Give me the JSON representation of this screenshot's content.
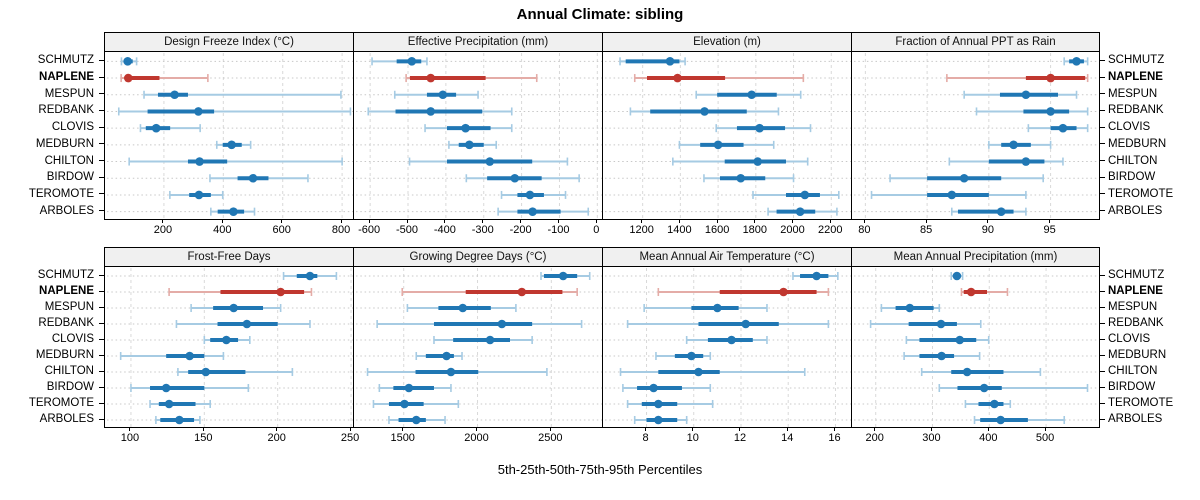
{
  "title": "Annual Climate: sibling",
  "caption": "5th-25th-50th-75th-95th Percentiles",
  "percentile_labels": [
    "5th",
    "25th",
    "50th",
    "75th",
    "95th"
  ],
  "sites": [
    "SCHMUTZ",
    "NAPLENE",
    "MESPUN",
    "REDBANK",
    "CLOVIS",
    "MEDBURN",
    "CHILTON",
    "BIRDOW",
    "TEROMOTE",
    "ARBOLES"
  ],
  "highlight_site": "NAPLENE",
  "colors": {
    "series": "#2077B4",
    "series_light": "#A6CBE3",
    "highlight": "#C0372F",
    "highlight_light": "#E4ACA7",
    "gridline": "#D9D9D9",
    "rowline": "#C8C8C8",
    "strip_bg": "#F0F0F0",
    "border": "#000000"
  },
  "chart_data": [
    {
      "type": "dotplot-interval",
      "title": "Design Freeze Index (°C)",
      "xlim": [
        5,
        840
      ],
      "ticks": [
        200,
        400,
        600,
        800
      ],
      "series": {
        "SCHMUTZ": [
          57,
          65,
          78,
          95,
          108
        ],
        "NAPLENE": [
          56,
          68,
          80,
          185,
          348
        ],
        "MESPUN": [
          133,
          180,
          236,
          281,
          796
        ],
        "REDBANK": [
          48,
          145,
          316,
          369,
          828
        ],
        "CLOVIS": [
          121,
          139,
          174,
          221,
          322
        ],
        "MEDBURN": [
          378,
          398,
          428,
          462,
          492
        ],
        "CHILTON": [
          83,
          281,
          320,
          413,
          800
        ],
        "BIRDOW": [
          355,
          448,
          500,
          552,
          685
        ],
        "TEROMOTE": [
          220,
          285,
          318,
          358,
          398
        ],
        "ARBOLES": [
          358,
          381,
          434,
          470,
          505
        ]
      }
    },
    {
      "type": "dotplot-interval",
      "title": "Effective Precipitation (mm)",
      "xlim": [
        -640,
        15
      ],
      "ticks": [
        -600,
        -500,
        -400,
        -300,
        -200,
        -100,
        0
      ],
      "series": {
        "SCHMUTZ": [
          -595,
          -530,
          -490,
          -465,
          -450
        ],
        "NAPLENE": [
          -505,
          -495,
          -440,
          -295,
          -160
        ],
        "MESPUN": [
          -535,
          -450,
          -408,
          -373,
          -315
        ],
        "REDBANK": [
          -605,
          -533,
          -440,
          -304,
          -226
        ],
        "CLOVIS": [
          -455,
          -397,
          -348,
          -282,
          -226
        ],
        "MEDBURN": [
          -392,
          -366,
          -338,
          -300,
          -267
        ],
        "CHILTON": [
          -496,
          -397,
          -284,
          -172,
          -79
        ],
        "BIRDOW": [
          -346,
          -291,
          -218,
          -147,
          -48
        ],
        "TEROMOTE": [
          -253,
          -211,
          -178,
          -141,
          -84
        ],
        "ARBOLES": [
          -262,
          -211,
          -171,
          -97,
          -24
        ]
      }
    },
    {
      "type": "dotplot-interval",
      "title": "Elevation (m)",
      "xlim": [
        995,
        2310
      ],
      "ticks": [
        1200,
        1400,
        1600,
        1800,
        2000,
        2200
      ],
      "series": {
        "SCHMUTZ": [
          1080,
          1110,
          1345,
          1395,
          1425
        ],
        "NAPLENE": [
          1158,
          1223,
          1385,
          1637,
          2052
        ],
        "MESPUN": [
          1484,
          1595,
          1778,
          1911,
          2038
        ],
        "REDBANK": [
          1135,
          1240,
          1528,
          1752,
          1920
        ],
        "CLOVIS": [
          1590,
          1700,
          1820,
          1955,
          2090
        ],
        "MEDBURN": [
          1395,
          1505,
          1600,
          1735,
          1895
        ],
        "CHILTON": [
          1360,
          1635,
          1810,
          1960,
          2075
        ],
        "BIRDOW": [
          1525,
          1610,
          1720,
          1850,
          2000
        ],
        "TEROMOTE": [
          1785,
          1960,
          2060,
          2140,
          2240
        ],
        "ARBOLES": [
          1865,
          1910,
          2035,
          2115,
          2230
        ]
      }
    },
    {
      "type": "dotplot-interval",
      "title": "Fraction of Annual PPT as Rain",
      "xlim": [
        79,
        99
      ],
      "ticks": [
        80,
        85,
        90,
        95
      ],
      "series": {
        "SCHMUTZ": [
          96.1,
          96.5,
          97.1,
          97.7,
          98.0
        ],
        "NAPLENE": [
          86.6,
          93.0,
          95.0,
          97.8,
          98.0
        ],
        "MESPUN": [
          88.0,
          90.9,
          93.0,
          95.6,
          97.1
        ],
        "REDBANK": [
          89.0,
          92.8,
          95.0,
          96.5,
          98.0
        ],
        "CLOVIS": [
          93.2,
          95.0,
          96.0,
          97.1,
          98.0
        ],
        "MEDBURN": [
          90.0,
          91.0,
          92.0,
          93.4,
          95.0
        ],
        "CHILTON": [
          86.8,
          90.0,
          93.0,
          94.5,
          96.0
        ],
        "BIRDOW": [
          82.0,
          85.0,
          88.0,
          91.0,
          94.4
        ],
        "TEROMOTE": [
          80.5,
          85.0,
          87.0,
          90.0,
          93.0
        ],
        "ARBOLES": [
          87.0,
          87.5,
          91.0,
          92.0,
          93.0
        ]
      }
    },
    {
      "type": "dotplot-interval",
      "title": "Frost-Free Days",
      "xlim": [
        83,
        252
      ],
      "ticks": [
        100,
        150,
        200,
        250
      ],
      "series": {
        "SCHMUTZ": [
          204,
          213,
          222,
          227,
          240
        ],
        "NAPLENE": [
          126,
          161,
          202,
          218,
          223
        ],
        "MESPUN": [
          141,
          156,
          170,
          190,
          202
        ],
        "REDBANK": [
          131,
          159,
          179,
          200,
          222
        ],
        "CLOVIS": [
          150,
          154,
          165,
          173,
          181
        ],
        "MEDBURN": [
          93,
          124,
          140,
          150,
          163
        ],
        "CHILTON": [
          132,
          139,
          151,
          178,
          210
        ],
        "BIRDOW": [
          100,
          113,
          124,
          150,
          180
        ],
        "TEROMOTE": [
          113,
          119,
          126,
          144,
          154
        ],
        "ARBOLES": [
          117,
          120,
          133,
          143,
          147
        ]
      }
    },
    {
      "type": "dotplot-interval",
      "title": "Growing Degree Days (°C)",
      "xlim": [
        1170,
        2850
      ],
      "ticks": [
        1500,
        2000,
        2500
      ],
      "series": {
        "SCHMUTZ": [
          2430,
          2450,
          2580,
          2675,
          2760
        ],
        "NAPLENE": [
          1490,
          1920,
          2300,
          2575,
          2675
        ],
        "MESPUN": [
          1525,
          1735,
          1900,
          2090,
          2260
        ],
        "REDBANK": [
          1320,
          1705,
          2165,
          2370,
          2705
        ],
        "CLOVIS": [
          1705,
          1835,
          2085,
          2220,
          2370
        ],
        "MEDBURN": [
          1585,
          1650,
          1790,
          1840,
          1895
        ],
        "CHILTON": [
          1255,
          1580,
          1820,
          2005,
          2470
        ],
        "BIRDOW": [
          1335,
          1430,
          1535,
          1705,
          1820
        ],
        "TEROMOTE": [
          1295,
          1400,
          1505,
          1635,
          1870
        ],
        "ARBOLES": [
          1400,
          1465,
          1585,
          1650,
          1780
        ]
      }
    },
    {
      "type": "dotplot-interval",
      "title": "Mean Annual Air Temperature (°C)",
      "xlim": [
        6.2,
        16.7
      ],
      "ticks": [
        8,
        10,
        12,
        14,
        16
      ],
      "series": {
        "SCHMUTZ": [
          14.2,
          14.5,
          15.2,
          15.7,
          16.1
        ],
        "NAPLENE": [
          8.5,
          11.1,
          13.8,
          15.2,
          15.7
        ],
        "MESPUN": [
          7.9,
          9.9,
          11.0,
          11.9,
          13.1
        ],
        "REDBANK": [
          7.2,
          10.2,
          12.2,
          13.6,
          15.7
        ],
        "CLOVIS": [
          9.7,
          10.6,
          11.6,
          12.5,
          13.1
        ],
        "MEDBURN": [
          8.4,
          9.2,
          9.9,
          10.4,
          10.7
        ],
        "CHILTON": [
          6.9,
          8.5,
          10.2,
          11.1,
          14.7
        ],
        "BIRDOW": [
          7.0,
          7.6,
          8.3,
          9.5,
          10.7
        ],
        "TEROMOTE": [
          7.2,
          7.8,
          8.5,
          9.3,
          10.8
        ],
        "ARBOLES": [
          7.5,
          8.0,
          8.5,
          9.3,
          9.7
        ]
      }
    },
    {
      "type": "dotplot-interval",
      "title": "Mean Annual Precipitation (mm)",
      "xlim": [
        160,
        595
      ],
      "ticks": [
        200,
        300,
        400,
        500
      ],
      "series": {
        "SCHMUTZ": [
          333,
          337,
          343,
          349,
          353
        ],
        "NAPLENE": [
          351,
          355,
          368,
          396,
          432
        ],
        "MESPUN": [
          210,
          235,
          260,
          302,
          312
        ],
        "REDBANK": [
          191,
          258,
          315,
          343,
          385
        ],
        "CLOVIS": [
          254,
          277,
          348,
          377,
          399
        ],
        "MEDBURN": [
          250,
          277,
          316,
          338,
          383
        ],
        "CHILTON": [
          281,
          333,
          361,
          425,
          490
        ],
        "BIRDOW": [
          312,
          344,
          391,
          422,
          573
        ],
        "TEROMOTE": [
          358,
          381,
          409,
          425,
          437
        ],
        "ARBOLES": [
          374,
          384,
          420,
          468,
          532
        ]
      }
    }
  ]
}
